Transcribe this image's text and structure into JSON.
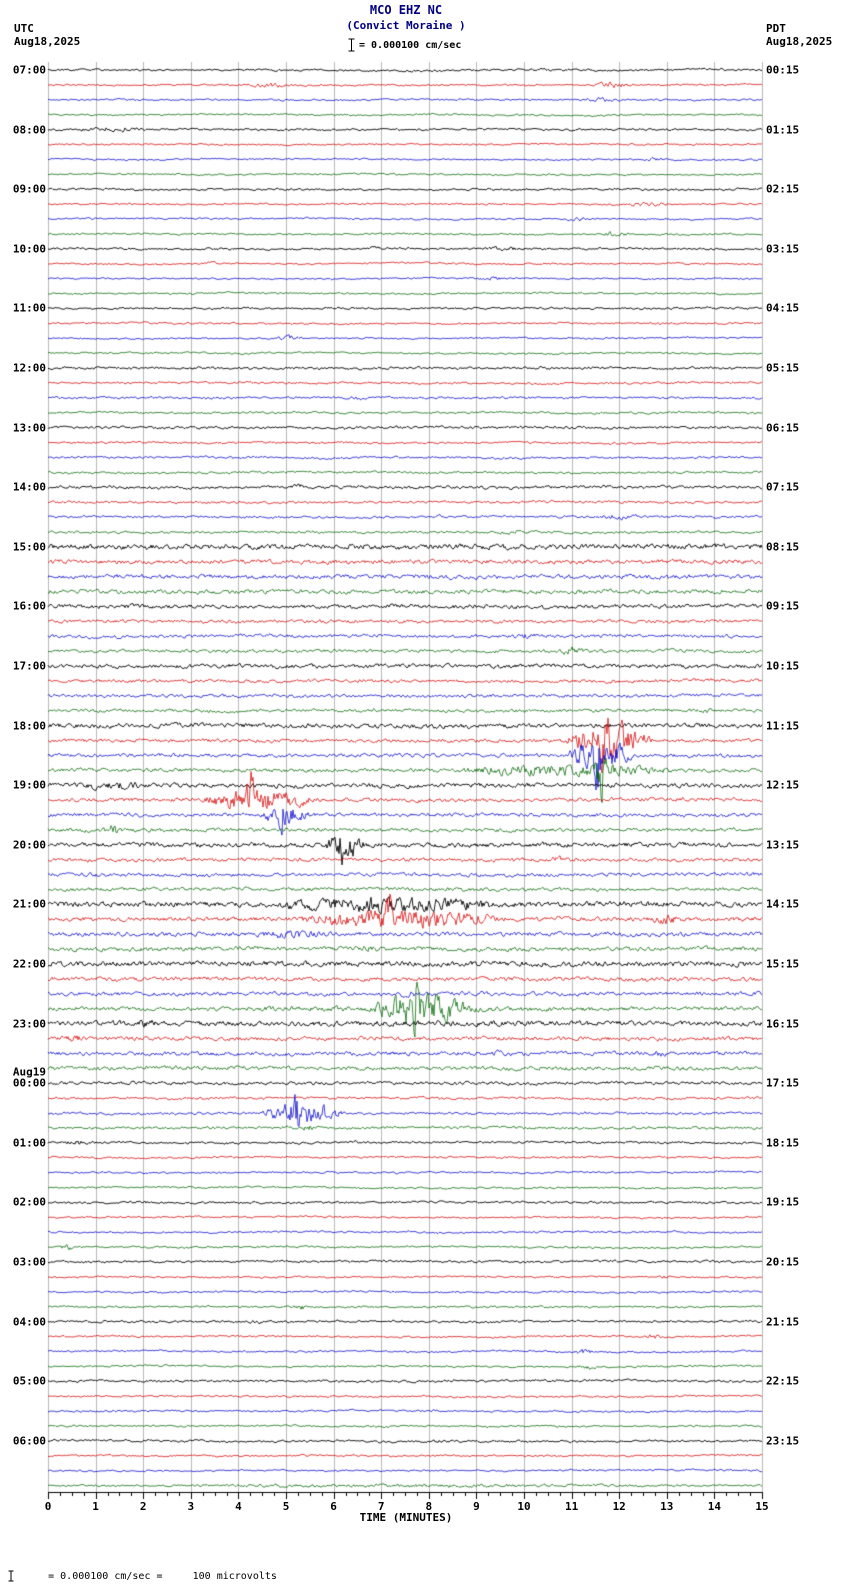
{
  "header": {
    "station": "MCO EHZ NC",
    "location": "(Convict Moraine )",
    "scale_label": "= 0.000100 cm/sec",
    "left_tz": "UTC",
    "left_date": "Aug18,2025",
    "right_tz": "PDT",
    "right_date": "Aug18,2025"
  },
  "footer": {
    "note": "= 0.000100 cm/sec =     100 microvolts"
  },
  "colors": {
    "title": "#000080",
    "axis": "#000000",
    "background": "#ffffff"
  },
  "chart_data": {
    "type": "line",
    "title": "MCO EHZ NC (Convict Moraine) helicorder, 24 hours starting Aug18,2025 07:00 UTC",
    "xlabel": "TIME (MINUTES)",
    "ylabel": "",
    "x_range": [
      0,
      15
    ],
    "x_ticks": [
      "0",
      "1",
      "2",
      "3",
      "4",
      "5",
      "6",
      "7",
      "8",
      "9",
      "10",
      "11",
      "12",
      "13",
      "14",
      "15"
    ],
    "rows": 96,
    "minutes_per_row": 15,
    "utc_start": "07:00",
    "trace_colors": [
      "#000000",
      "#d40000",
      "#0000cc",
      "#006600"
    ],
    "grid_color": "#8a8a8a",
    "date_break": {
      "row": 68,
      "text": "Aug19"
    },
    "left_labels": [
      {
        "row": 0,
        "text": "07:00"
      },
      {
        "row": 4,
        "text": "08:00"
      },
      {
        "row": 8,
        "text": "09:00"
      },
      {
        "row": 12,
        "text": "10:00"
      },
      {
        "row": 16,
        "text": "11:00"
      },
      {
        "row": 20,
        "text": "12:00"
      },
      {
        "row": 24,
        "text": "13:00"
      },
      {
        "row": 28,
        "text": "14:00"
      },
      {
        "row": 32,
        "text": "15:00"
      },
      {
        "row": 36,
        "text": "16:00"
      },
      {
        "row": 40,
        "text": "17:00"
      },
      {
        "row": 44,
        "text": "18:00"
      },
      {
        "row": 48,
        "text": "19:00"
      },
      {
        "row": 52,
        "text": "20:00"
      },
      {
        "row": 56,
        "text": "21:00"
      },
      {
        "row": 60,
        "text": "22:00"
      },
      {
        "row": 64,
        "text": "23:00"
      },
      {
        "row": 68,
        "text": "00:00"
      },
      {
        "row": 72,
        "text": "01:00"
      },
      {
        "row": 76,
        "text": "02:00"
      },
      {
        "row": 80,
        "text": "03:00"
      },
      {
        "row": 84,
        "text": "04:00"
      },
      {
        "row": 88,
        "text": "05:00"
      },
      {
        "row": 92,
        "text": "06:00"
      }
    ],
    "right_labels": [
      {
        "row": 0,
        "text": "00:15"
      },
      {
        "row": 4,
        "text": "01:15"
      },
      {
        "row": 8,
        "text": "02:15"
      },
      {
        "row": 12,
        "text": "03:15"
      },
      {
        "row": 16,
        "text": "04:15"
      },
      {
        "row": 20,
        "text": "05:15"
      },
      {
        "row": 24,
        "text": "06:15"
      },
      {
        "row": 28,
        "text": "07:15"
      },
      {
        "row": 32,
        "text": "08:15"
      },
      {
        "row": 36,
        "text": "09:15"
      },
      {
        "row": 40,
        "text": "10:15"
      },
      {
        "row": 44,
        "text": "11:15"
      },
      {
        "row": 48,
        "text": "12:15"
      },
      {
        "row": 52,
        "text": "13:15"
      },
      {
        "row": 56,
        "text": "14:15"
      },
      {
        "row": 60,
        "text": "15:15"
      },
      {
        "row": 64,
        "text": "16:15"
      },
      {
        "row": 68,
        "text": "17:15"
      },
      {
        "row": 72,
        "text": "18:15"
      },
      {
        "row": 76,
        "text": "19:15"
      },
      {
        "row": 80,
        "text": "20:15"
      },
      {
        "row": 84,
        "text": "21:15"
      },
      {
        "row": 88,
        "text": "22:15"
      },
      {
        "row": 92,
        "text": "23:15"
      }
    ],
    "base_noise": 1.2,
    "noise_bands": [
      {
        "rows": [
          20,
          27
        ],
        "amp": 1.5
      },
      {
        "rows": [
          28,
          31
        ],
        "amp": 1.7
      },
      {
        "rows": [
          32,
          35
        ],
        "amp": 3.0
      },
      {
        "rows": [
          36,
          43
        ],
        "amp": 2.3
      },
      {
        "rows": [
          44,
          55
        ],
        "amp": 2.6
      },
      {
        "rows": [
          56,
          61
        ],
        "amp": 3.0
      },
      {
        "rows": [
          62,
          67
        ],
        "amp": 2.8
      },
      {
        "rows": [
          68,
          71
        ],
        "amp": 1.8
      },
      {
        "rows": [
          72,
          95
        ],
        "amp": 1.3
      }
    ],
    "events": [
      {
        "row": 1,
        "x0": 4.2,
        "x1": 5.2,
        "amp": 4
      },
      {
        "row": 1,
        "x0": 11.4,
        "x1": 12.4,
        "amp": 5
      },
      {
        "row": 2,
        "x0": 11.2,
        "x1": 12.0,
        "amp": 4
      },
      {
        "row": 4,
        "x0": 0.4,
        "x1": 2.2,
        "amp": 4
      },
      {
        "row": 6,
        "x0": 12.4,
        "x1": 13.2,
        "amp": 3
      },
      {
        "row": 9,
        "x0": 12.0,
        "x1": 13.2,
        "amp": 3
      },
      {
        "row": 10,
        "x0": 10.7,
        "x1": 11.6,
        "amp": 3
      },
      {
        "row": 11,
        "x0": 11.6,
        "x1": 12.3,
        "amp": 4
      },
      {
        "row": 12,
        "x0": 9.0,
        "x1": 10.2,
        "amp": 3
      },
      {
        "row": 12,
        "x0": 6.6,
        "x1": 7.2,
        "amp": 3
      },
      {
        "row": 13,
        "x0": 3.2,
        "x1": 3.7,
        "amp": 3
      },
      {
        "row": 14,
        "x0": 8.9,
        "x1": 9.8,
        "amp": 3
      },
      {
        "row": 17,
        "x0": 12.7,
        "x1": 13.1,
        "amp": 3
      },
      {
        "row": 18,
        "x0": 4.7,
        "x1": 5.5,
        "amp": 3.5
      },
      {
        "row": 22,
        "x0": 6.2,
        "x1": 6.8,
        "amp": 3
      },
      {
        "row": 28,
        "x0": 5.1,
        "x1": 5.4,
        "amp": 5
      },
      {
        "row": 30,
        "x0": 11.4,
        "x1": 12.6,
        "amp": 4
      },
      {
        "row": 31,
        "x0": 9.2,
        "x1": 10.4,
        "amp": 3
      },
      {
        "row": 32,
        "x0": 7.0,
        "x1": 12.5,
        "amp": 4
      },
      {
        "row": 36,
        "x0": 1.4,
        "x1": 2.1,
        "amp": 5
      },
      {
        "row": 38,
        "x0": 9.6,
        "x1": 10.6,
        "amp": 4
      },
      {
        "row": 39,
        "x0": 10.7,
        "x1": 11.3,
        "amp": 7
      },
      {
        "row": 43,
        "x0": 13.6,
        "x1": 14.0,
        "amp": 4
      },
      {
        "row": 45,
        "x0": 10.9,
        "x1": 12.7,
        "amp": 26,
        "spike": true
      },
      {
        "row": 46,
        "x0": 10.9,
        "x1": 12.3,
        "amp": 22,
        "spike": true
      },
      {
        "row": 47,
        "x0": 8.3,
        "x1": 13.6,
        "amp": 9
      },
      {
        "row": 47,
        "x0": 11.3,
        "x1": 12.0,
        "amp": 18,
        "spike": true
      },
      {
        "row": 48,
        "x0": 0.0,
        "x1": 2.6,
        "amp": 6
      },
      {
        "row": 49,
        "x0": 3.1,
        "x1": 5.7,
        "amp": 16,
        "spike": true
      },
      {
        "row": 50,
        "x0": 4.4,
        "x1": 5.5,
        "amp": 14,
        "spike": true
      },
      {
        "row": 51,
        "x0": 1.1,
        "x1": 1.6,
        "amp": 8
      },
      {
        "row": 52,
        "x0": 5.8,
        "x1": 6.7,
        "amp": 20,
        "spike": true
      },
      {
        "row": 53,
        "x0": 10.4,
        "x1": 11.1,
        "amp": 5
      },
      {
        "row": 56,
        "x0": 4.4,
        "x1": 9.9,
        "amp": 12,
        "spike": true
      },
      {
        "row": 57,
        "x0": 5.1,
        "x1": 9.7,
        "amp": 14,
        "spike": true
      },
      {
        "row": 57,
        "x0": 12.6,
        "x1": 13.3,
        "amp": 8
      },
      {
        "row": 58,
        "x0": 4.2,
        "x1": 6.1,
        "amp": 7
      },
      {
        "row": 59,
        "x0": 6.4,
        "x1": 7.1,
        "amp": 5
      },
      {
        "row": 62,
        "x0": 7.2,
        "x1": 7.9,
        "amp": 6
      },
      {
        "row": 63,
        "x0": 6.8,
        "x1": 8.9,
        "amp": 26,
        "spike": true
      },
      {
        "row": 63,
        "x0": 0.0,
        "x1": 15.0,
        "amp": 4
      },
      {
        "row": 64,
        "x0": 0.0,
        "x1": 15.0,
        "amp": 4
      },
      {
        "row": 64,
        "x0": 1.4,
        "x1": 2.6,
        "amp": 6
      },
      {
        "row": 65,
        "x0": 0.2,
        "x1": 1.0,
        "amp": 5
      },
      {
        "row": 66,
        "x0": 9.2,
        "x1": 9.7,
        "amp": 5
      },
      {
        "row": 66,
        "x0": 12.6,
        "x1": 13.1,
        "amp": 6
      },
      {
        "row": 70,
        "x0": 4.5,
        "x1": 6.2,
        "amp": 18,
        "spike": true
      },
      {
        "row": 71,
        "x0": 5.3,
        "x1": 5.7,
        "amp": 6
      },
      {
        "row": 72,
        "x0": 0.1,
        "x1": 1.1,
        "amp": 4
      },
      {
        "row": 76,
        "x0": 1.5,
        "x1": 2.3,
        "amp": 3
      },
      {
        "row": 79,
        "x0": 0.2,
        "x1": 0.6,
        "amp": 5
      },
      {
        "row": 81,
        "x0": 12.8,
        "x1": 13.2,
        "amp": 4
      },
      {
        "row": 83,
        "x0": 5.1,
        "x1": 5.5,
        "amp": 5
      },
      {
        "row": 84,
        "x0": 4.0,
        "x1": 4.6,
        "amp": 3
      },
      {
        "row": 85,
        "x0": 12.5,
        "x1": 13.0,
        "amp": 4
      },
      {
        "row": 86,
        "x0": 11.0,
        "x1": 11.5,
        "amp": 4
      },
      {
        "row": 87,
        "x0": 11.1,
        "x1": 11.6,
        "amp": 4
      },
      {
        "row": 90,
        "x0": 7.7,
        "x1": 8.3,
        "amp": 3
      },
      {
        "row": 92,
        "x0": 8.0,
        "x1": 8.5,
        "amp": 3
      },
      {
        "row": 95,
        "x0": 0.0,
        "x1": 15.0,
        "amp": 2.5
      }
    ]
  }
}
